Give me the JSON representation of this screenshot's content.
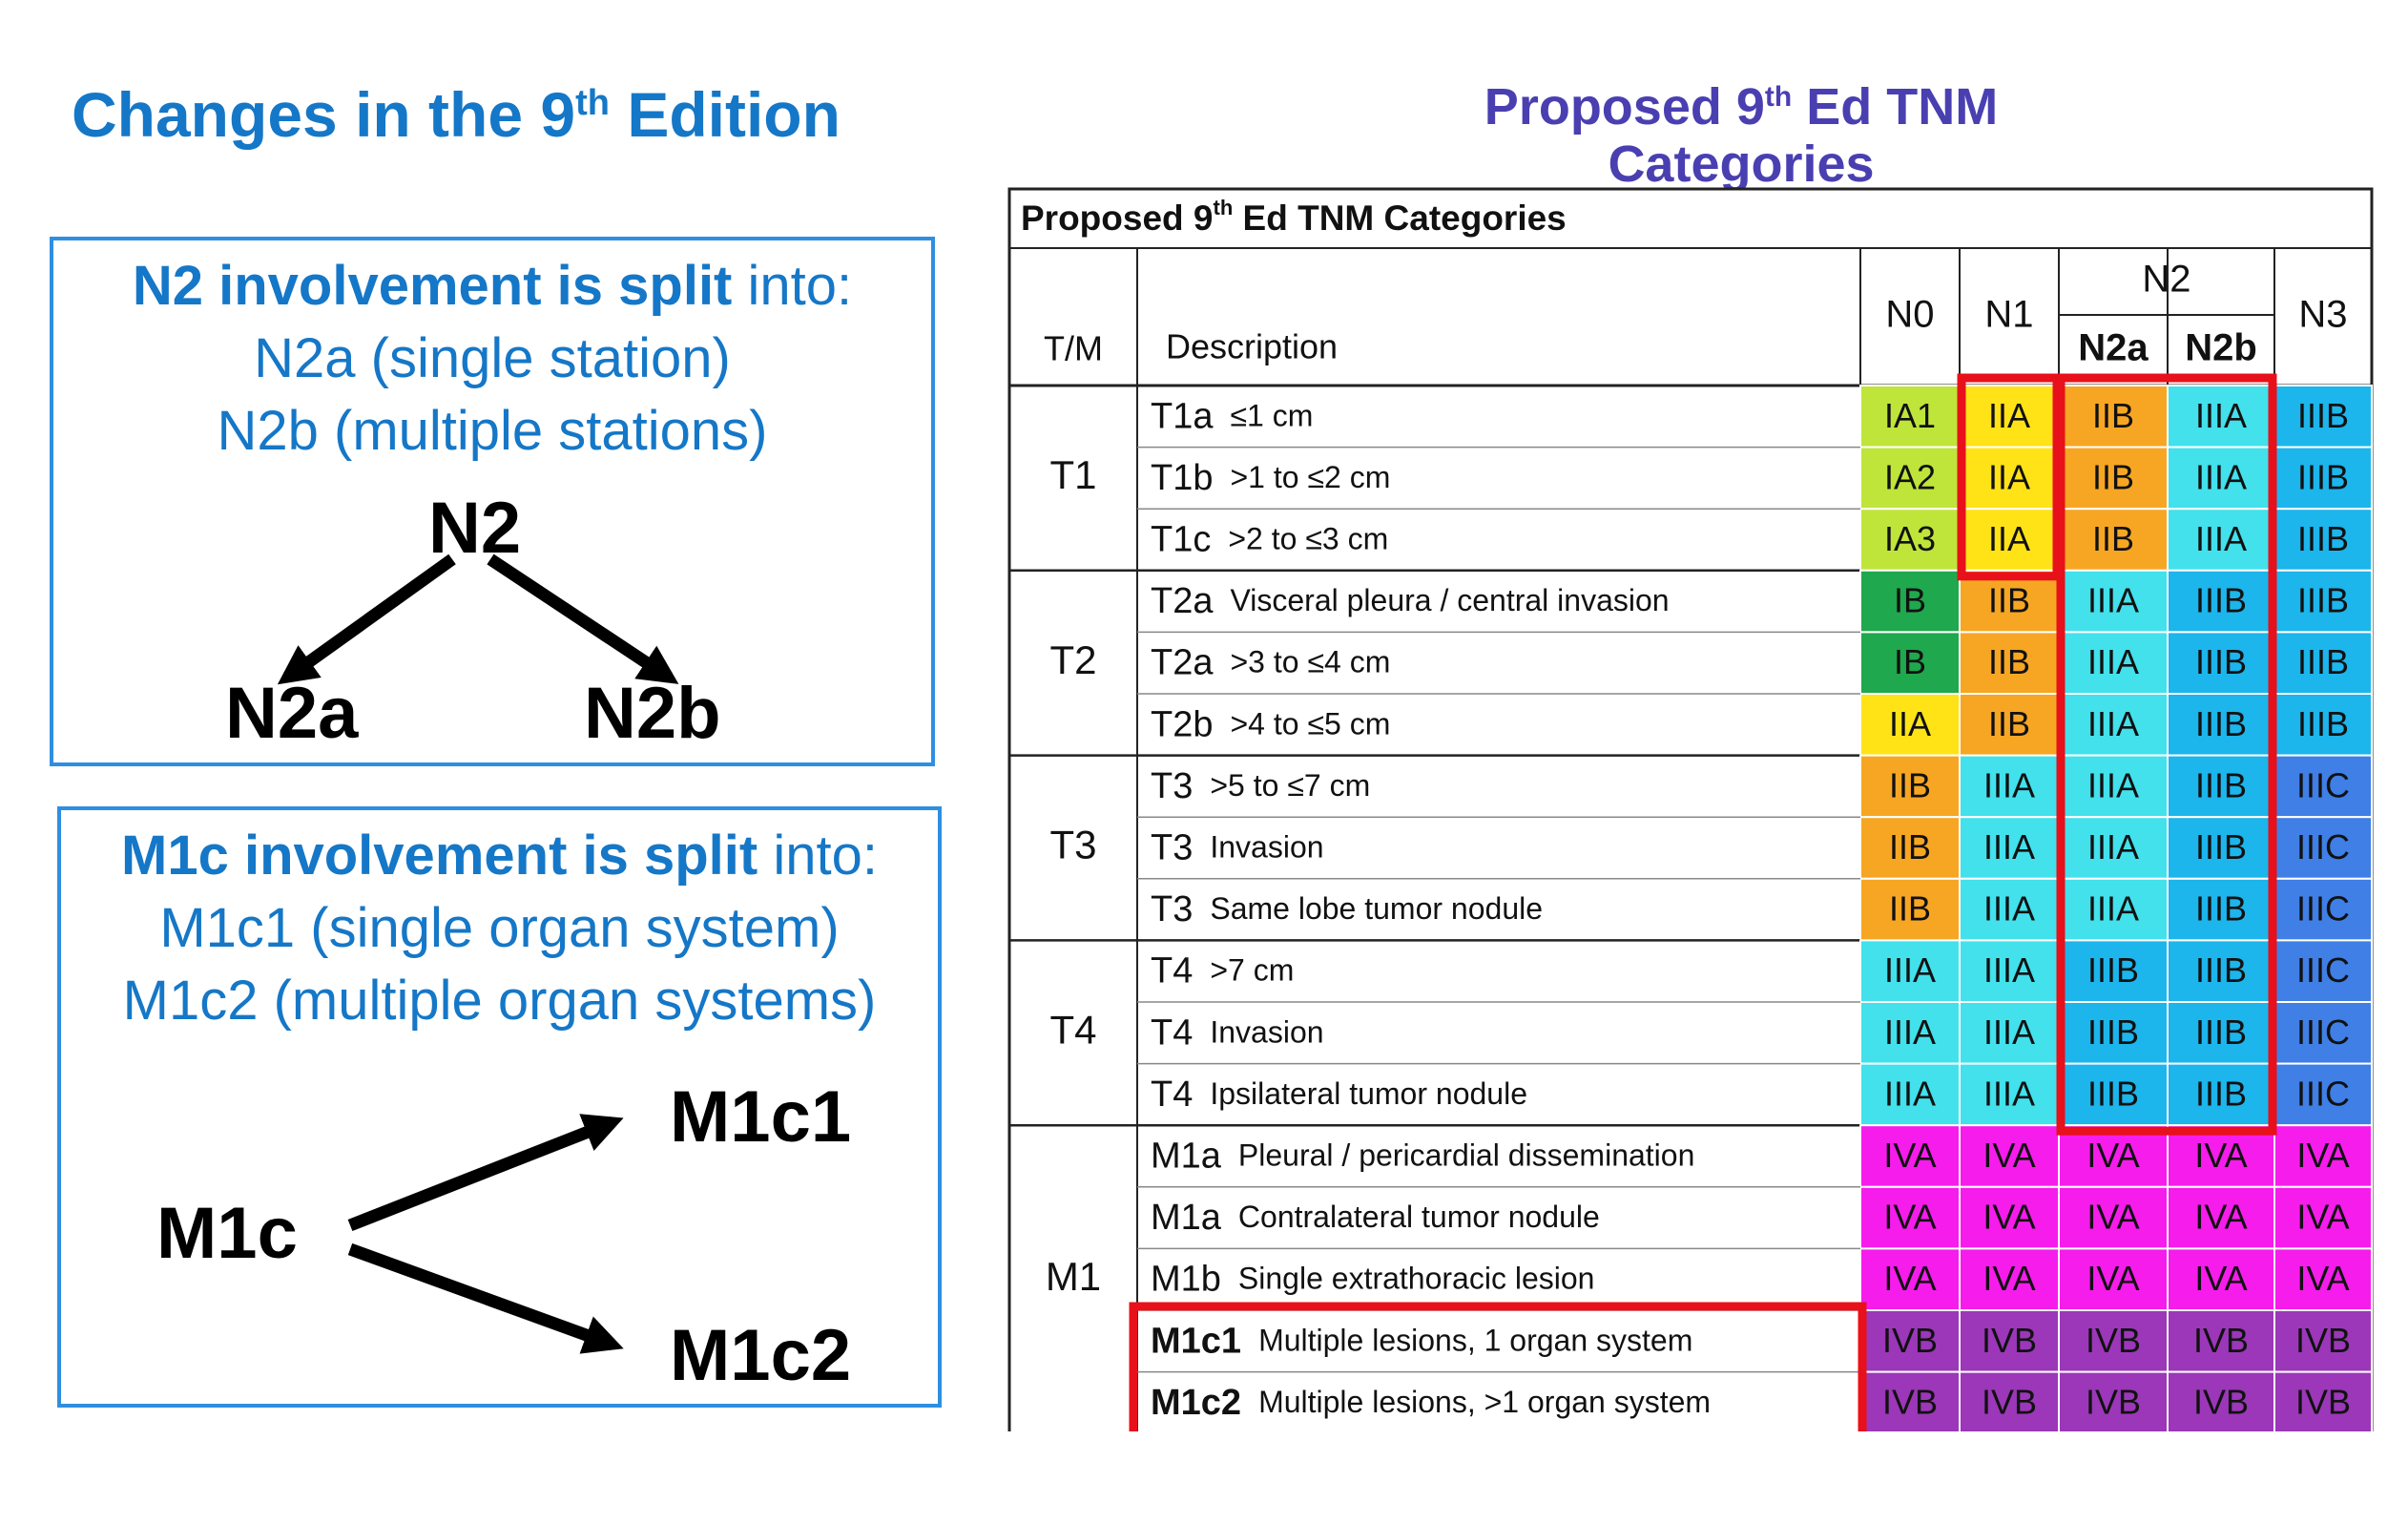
{
  "left_title": {
    "pre": "Changes in the 9",
    "sup": "th",
    "post": " Edition"
  },
  "n2_panel": {
    "line1_bold": "N2 involvement is split",
    "line1_rest": " into:",
    "line2": "N2a (single station)",
    "line3": "N2b (multiple stations)",
    "root": "N2",
    "left_child": "N2a",
    "right_child": "N2b"
  },
  "m1c_panel": {
    "line1_bold": "M1c involvement is split",
    "line1_rest": " into:",
    "line2": "M1c1 (single organ system)",
    "line3": "M1c2 (multiple organ systems)",
    "root": "M1c",
    "top_child": "M1c1",
    "bottom_child": "M1c2"
  },
  "right_title": {
    "line1_pre": "Proposed 9",
    "line1_sup": "th",
    "line1_post": " Ed TNM",
    "line2": "Categories"
  },
  "table": {
    "caption_pre": "Proposed 9",
    "caption_sup": "th",
    "caption_post": " Ed TNM Categories",
    "header": {
      "tm": "T/M",
      "description": "Description",
      "n0": "N0",
      "n1": "N1",
      "n2": "N2",
      "n2a": "N2a",
      "n2b": "N2b",
      "n3": "N3"
    },
    "groups": [
      {
        "label": "T1",
        "rows": [
          {
            "code": "T1a",
            "desc": "≤1 cm",
            "bold": false,
            "stages": [
              "IA1",
              "IIA",
              "IIB",
              "IIIA",
              "IIIB"
            ]
          },
          {
            "code": "T1b",
            "desc": ">1 to ≤2 cm",
            "bold": false,
            "stages": [
              "IA2",
              "IIA",
              "IIB",
              "IIIA",
              "IIIB"
            ]
          },
          {
            "code": "T1c",
            "desc": ">2 to ≤3 cm",
            "bold": false,
            "stages": [
              "IA3",
              "IIA",
              "IIB",
              "IIIA",
              "IIIB"
            ]
          }
        ]
      },
      {
        "label": "T2",
        "rows": [
          {
            "code": "T2a",
            "desc": "Visceral pleura / central invasion",
            "bold": false,
            "stages": [
              "IB",
              "IIB",
              "IIIA",
              "IIIB",
              "IIIB"
            ]
          },
          {
            "code": "T2a",
            "desc": ">3 to ≤4 cm",
            "bold": false,
            "stages": [
              "IB",
              "IIB",
              "IIIA",
              "IIIB",
              "IIIB"
            ]
          },
          {
            "code": "T2b",
            "desc": ">4 to ≤5 cm",
            "bold": false,
            "stages": [
              "IIA",
              "IIB",
              "IIIA",
              "IIIB",
              "IIIB"
            ]
          }
        ]
      },
      {
        "label": "T3",
        "rows": [
          {
            "code": "T3",
            "desc": ">5 to ≤7 cm",
            "bold": false,
            "stages": [
              "IIB",
              "IIIA",
              "IIIA",
              "IIIB",
              "IIIC"
            ]
          },
          {
            "code": "T3",
            "desc": "Invasion",
            "bold": false,
            "stages": [
              "IIB",
              "IIIA",
              "IIIA",
              "IIIB",
              "IIIC"
            ]
          },
          {
            "code": "T3",
            "desc": "Same lobe tumor nodule",
            "bold": false,
            "stages": [
              "IIB",
              "IIIA",
              "IIIA",
              "IIIB",
              "IIIC"
            ]
          }
        ]
      },
      {
        "label": "T4",
        "rows": [
          {
            "code": "T4",
            "desc": ">7 cm",
            "bold": false,
            "stages": [
              "IIIA",
              "IIIA",
              "IIIB",
              "IIIB",
              "IIIC"
            ]
          },
          {
            "code": "T4",
            "desc": "Invasion",
            "bold": false,
            "stages": [
              "IIIA",
              "IIIA",
              "IIIB",
              "IIIB",
              "IIIC"
            ]
          },
          {
            "code": "T4",
            "desc": "Ipsilateral tumor nodule",
            "bold": false,
            "stages": [
              "IIIA",
              "IIIA",
              "IIIB",
              "IIIB",
              "IIIC"
            ]
          }
        ]
      },
      {
        "label": "M1",
        "rows": [
          {
            "code": "M1a",
            "desc": "Pleural / pericardial dissemination",
            "bold": false,
            "stages": [
              "IVA",
              "IVA",
              "IVA",
              "IVA",
              "IVA"
            ]
          },
          {
            "code": "M1a",
            "desc": "Contralateral tumor nodule",
            "bold": false,
            "stages": [
              "IVA",
              "IVA",
              "IVA",
              "IVA",
              "IVA"
            ]
          },
          {
            "code": "M1b",
            "desc": "Single extrathoracic lesion",
            "bold": false,
            "stages": [
              "IVA",
              "IVA",
              "IVA",
              "IVA",
              "IVA"
            ]
          },
          {
            "code": "M1c1",
            "desc": "Multiple lesions, 1 organ system",
            "bold": true,
            "stages": [
              "IVB",
              "IVB",
              "IVB",
              "IVB",
              "IVB"
            ]
          },
          {
            "code": "M1c2",
            "desc": "Multiple lesions, >1 organ system",
            "bold": true,
            "stages": [
              "IVB",
              "IVB",
              "IVB",
              "IVB",
              "IVB"
            ]
          }
        ]
      }
    ]
  },
  "colors": {
    "blue_text": "#1577c7",
    "panel_border": "#2e8fe0",
    "navy_title": "#4a3fb1",
    "highlight_red": "#e8101a",
    "stage_colors": {
      "IA1": "#bfe53a",
      "IA2": "#bfe53a",
      "IA3": "#bfe53a",
      "IB": "#1fa84d",
      "IIA": "#ffe317",
      "IIB": "#f7a623",
      "IIIA": "#42e1ec",
      "IIIB": "#1cb5ec",
      "IIIC": "#3f7fe6",
      "IVA": "#f61cec",
      "IVB": "#9b37b8"
    }
  }
}
